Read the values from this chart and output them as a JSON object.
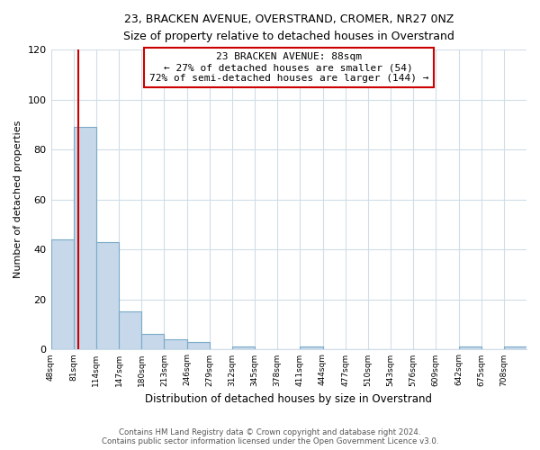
{
  "title": "23, BRACKEN AVENUE, OVERSTRAND, CROMER, NR27 0NZ",
  "subtitle": "Size of property relative to detached houses in Overstrand",
  "xlabel": "Distribution of detached houses by size in Overstrand",
  "ylabel": "Number of detached properties",
  "bin_labels": [
    "48sqm",
    "81sqm",
    "114sqm",
    "147sqm",
    "180sqm",
    "213sqm",
    "246sqm",
    "279sqm",
    "312sqm",
    "345sqm",
    "378sqm",
    "411sqm",
    "444sqm",
    "477sqm",
    "510sqm",
    "543sqm",
    "576sqm",
    "609sqm",
    "642sqm",
    "675sqm",
    "708sqm"
  ],
  "bar_heights": [
    44,
    89,
    43,
    15,
    6,
    4,
    3,
    0,
    1,
    0,
    0,
    1,
    0,
    0,
    0,
    0,
    0,
    0,
    1,
    0,
    1
  ],
  "bar_color": "#c6d8ea",
  "bar_edge_color": "#7baac8",
  "ylim": [
    0,
    120
  ],
  "yticks": [
    0,
    20,
    40,
    60,
    80,
    100,
    120
  ],
  "annotation_title": "23 BRACKEN AVENUE: 88sqm",
  "annotation_line1": "← 27% of detached houses are smaller (54)",
  "annotation_line2": "72% of semi-detached houses are larger (144) →",
  "annotation_box_color": "#ffffff",
  "annotation_box_edge_color": "#cc0000",
  "red_line_color": "#cc0000",
  "red_line_x": 1.22,
  "grid_color": "#d0dde8",
  "footer_line1": "Contains HM Land Registry data © Crown copyright and database right 2024.",
  "footer_line2": "Contains public sector information licensed under the Open Government Licence v3.0."
}
